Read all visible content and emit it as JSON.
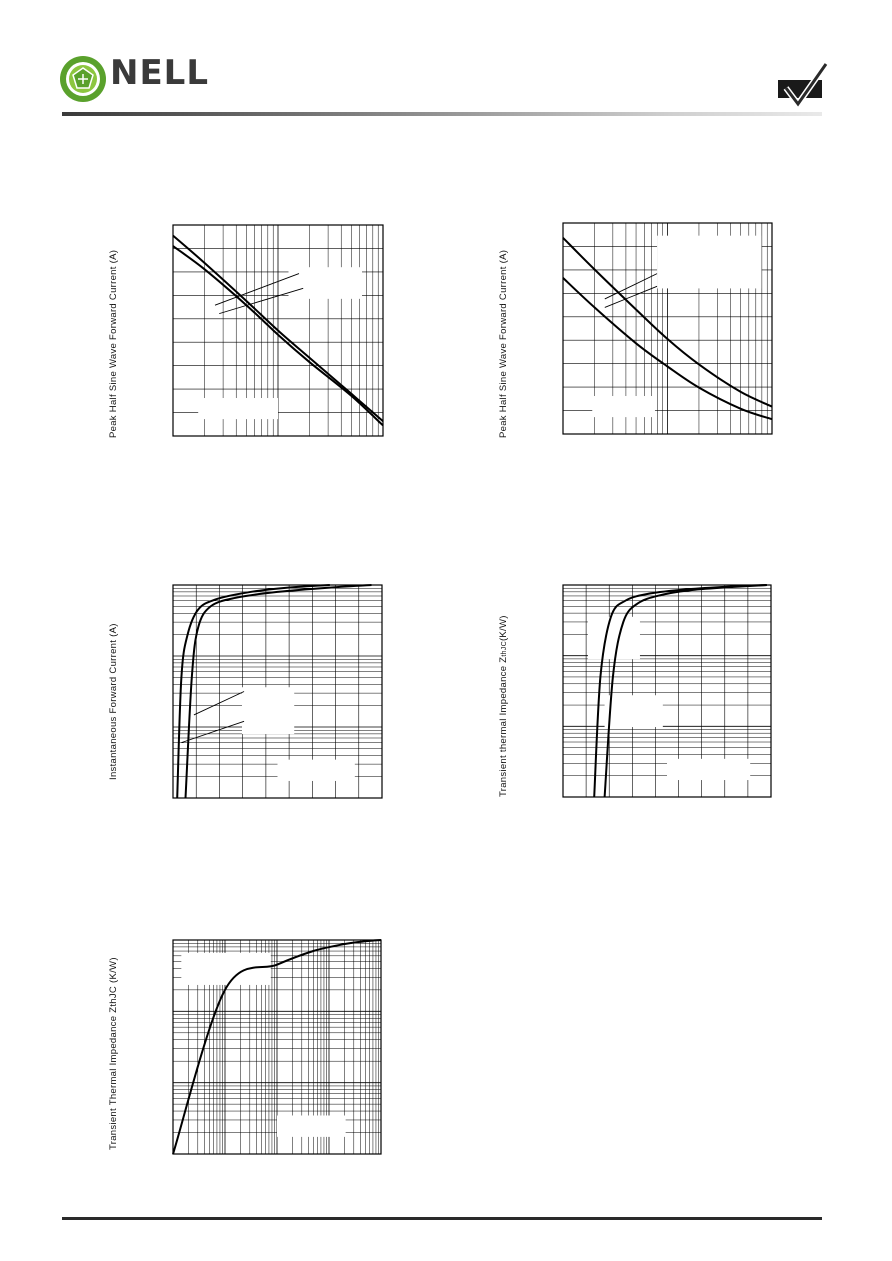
{
  "header": {
    "brand_text": "NELL",
    "topbar_colors": [
      "#3a3a3a",
      "#8a8a8a",
      "#e9e9e9"
    ],
    "logo_colors": {
      "outer": "#5aa12c",
      "inner": "#8cc63f"
    }
  },
  "footer": {
    "rule_color": "#2a2a2a"
  },
  "charts": [
    {
      "id": "chart1",
      "ylabel": "Peak Half Sine Wave Forward Current (A)",
      "chart_data": {
        "type": "line",
        "x_scale": "log",
        "y_scale": "linear",
        "grid": true,
        "series": [
          {
            "x": [
              1,
              2,
              5,
              10,
              20,
              50,
              100
            ],
            "y": [
              0.95,
              0.82,
              0.64,
              0.5,
              0.37,
              0.2,
              0.07
            ]
          },
          {
            "x": [
              1,
              2,
              5,
              10,
              20,
              50,
              100
            ],
            "y": [
              0.9,
              0.79,
              0.62,
              0.48,
              0.35,
              0.19,
              0.05
            ]
          }
        ]
      }
    },
    {
      "id": "chart2",
      "ylabel": "Peak Half Sine Wave Forward Current (A)",
      "chart_data": {
        "type": "line",
        "x_scale": "log",
        "y_scale": "linear",
        "grid": true,
        "series": [
          {
            "x": [
              1,
              2,
              5,
              10,
              20,
              50,
              100
            ],
            "y": [
              0.93,
              0.78,
              0.59,
              0.45,
              0.33,
              0.2,
              0.13
            ]
          },
          {
            "x": [
              1,
              2,
              5,
              10,
              20,
              50,
              100
            ],
            "y": [
              0.74,
              0.6,
              0.43,
              0.32,
              0.22,
              0.12,
              0.07
            ]
          }
        ]
      }
    },
    {
      "id": "chart3",
      "ylabel": "Instantaneous Forward Current (A)",
      "chart_data": {
        "type": "line",
        "x_scale": "linear",
        "y_scale": "log",
        "grid": true,
        "series": [
          {
            "x": [
              0.02,
              0.04,
              0.07,
              0.12,
              0.2,
              0.35,
              0.55,
              0.75
            ],
            "y": [
              0.001,
              0.05,
              0.2,
              0.45,
              0.62,
              0.78,
              0.92,
              1.0
            ]
          },
          {
            "x": [
              0.06,
              0.09,
              0.12,
              0.18,
              0.3,
              0.5,
              0.75,
              0.95
            ],
            "y": [
              0.001,
              0.05,
              0.25,
              0.5,
              0.66,
              0.8,
              0.92,
              1.0
            ]
          }
        ]
      }
    },
    {
      "id": "chart4",
      "ylabel": "Transient thermal Impedance Z",
      "ylabel_sub": "thJC",
      "ylabel_unit": "(K/W)",
      "chart_data": {
        "type": "line",
        "x_scale": "linear",
        "y_scale": "log",
        "grid": true,
        "series": [
          {
            "x": [
              0.15,
              0.18,
              0.23,
              0.3,
              0.42,
              0.6,
              0.8,
              0.98
            ],
            "y": [
              0.001,
              0.05,
              0.35,
              0.6,
              0.76,
              0.87,
              0.95,
              1.0
            ]
          },
          {
            "x": [
              0.2,
              0.24,
              0.29,
              0.36,
              0.47,
              0.62,
              0.82,
              0.98
            ],
            "y": [
              0.001,
              0.05,
              0.3,
              0.55,
              0.72,
              0.85,
              0.94,
              1.0
            ]
          }
        ]
      }
    },
    {
      "id": "chart5",
      "ylabel": "Transient Thermal Impedance ZthJC (K/W)",
      "chart_data": {
        "type": "line",
        "x_scale": "log",
        "y_scale": "log",
        "grid": true,
        "series": [
          {
            "x": [
              0.0001,
              0.001,
              0.01,
              0.05,
              0.2,
              0.5,
              1
            ],
            "y": [
              0.001,
              0.2,
              0.45,
              0.7,
              0.88,
              0.96,
              1.0
            ]
          }
        ]
      }
    }
  ]
}
